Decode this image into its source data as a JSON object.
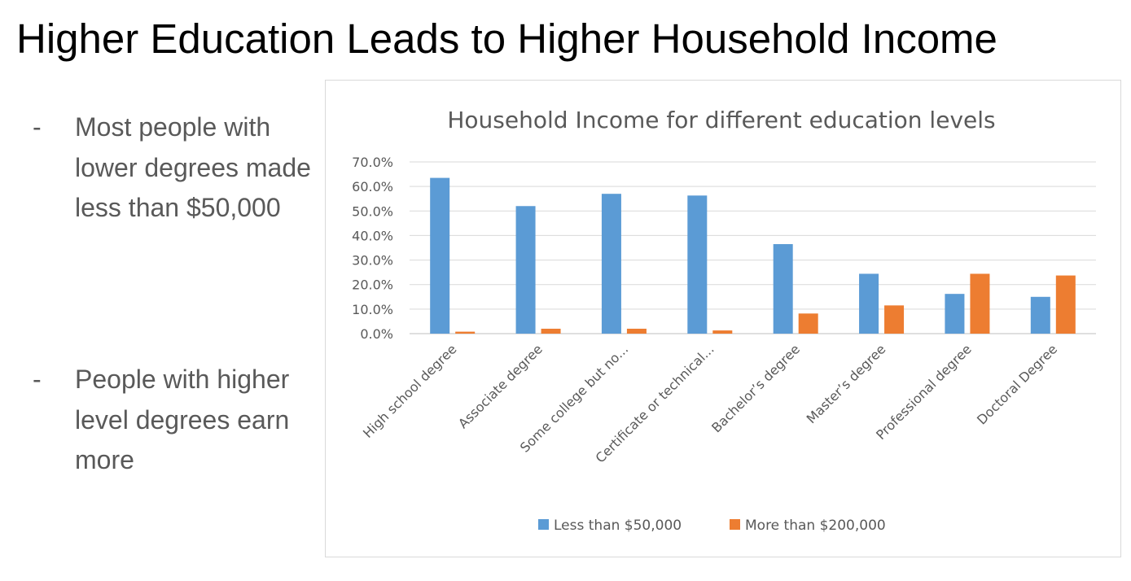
{
  "slide": {
    "title": "Higher Education Leads to Higher Household Income",
    "bullets": [
      {
        "dash": "-",
        "text": "Most people with lower degrees made less than $50,000"
      },
      {
        "dash": "-",
        "text": "People with higher level degrees earn more"
      }
    ]
  },
  "chart_data": {
    "type": "bar",
    "title": "Household Income for different education levels",
    "xlabel": "",
    "ylabel": "",
    "ylim": [
      0,
      70
    ],
    "ytick_values": [
      0,
      10,
      20,
      30,
      40,
      50,
      60,
      70
    ],
    "ytick_labels": [
      "0.0%",
      "10.0%",
      "20.0%",
      "30.0%",
      "40.0%",
      "50.0%",
      "60.0%",
      "70.0%"
    ],
    "categories": [
      "High school degree",
      "Associate degree",
      "Some college but no...",
      "Certificate or technical...",
      "Bachelor’s degree",
      "Master’s degree",
      "Professional degree",
      "Doctoral Degree"
    ],
    "series": [
      {
        "name": "Less than $50,000",
        "color": "#5b9bd5",
        "values": [
          63.5,
          52.0,
          57.0,
          56.3,
          36.5,
          24.4,
          16.2,
          15.0
        ]
      },
      {
        "name": "More than $200,000",
        "color": "#ed7d31",
        "values": [
          0.8,
          2.0,
          2.0,
          1.3,
          8.2,
          11.5,
          24.4,
          23.7
        ]
      }
    ],
    "grid": true,
    "legend_position": "bottom"
  }
}
